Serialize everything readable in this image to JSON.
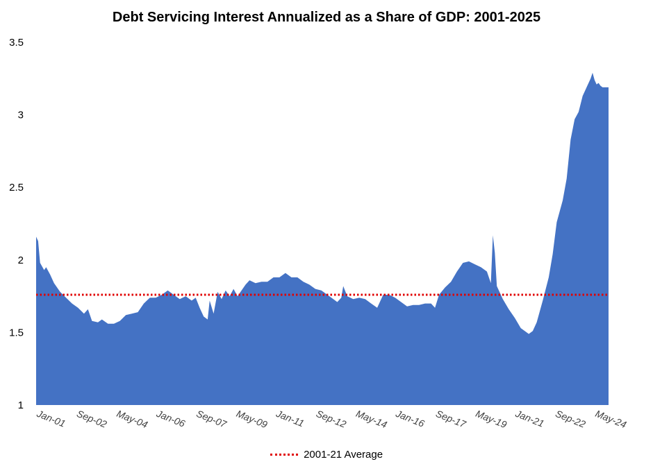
{
  "chart_data": {
    "type": "area",
    "title": "Debt Servicing Interest Annualized as a Share of GDP: 2001-2025",
    "xlabel": "",
    "ylabel": "",
    "ylim": [
      1,
      3.5
    ],
    "yticks": [
      "1",
      "1.5",
      "2",
      "2.5",
      "3",
      "3.5"
    ],
    "xtick_labels": [
      "Jan-01",
      "Sep-02",
      "May-04",
      "Jan-06",
      "Sep-07",
      "May-09",
      "Jan-11",
      "Sep-12",
      "May-14",
      "Jan-16",
      "Sep-17",
      "May-19",
      "Jan-21",
      "Sep-22",
      "May-24"
    ],
    "x_start": "Jan-01",
    "x_end": "Dec-24",
    "series": [
      {
        "name": "",
        "color": "#4472c4",
        "points": [
          [
            "Jan-01",
            2.16
          ],
          [
            "Feb-01",
            2.13
          ],
          [
            "Mar-01",
            1.98
          ],
          [
            "May-01",
            1.93
          ],
          [
            "Jun-01",
            1.95
          ],
          [
            "Aug-01",
            1.9
          ],
          [
            "Oct-01",
            1.84
          ],
          [
            "Jan-02",
            1.78
          ],
          [
            "Apr-02",
            1.74
          ],
          [
            "Jul-02",
            1.7
          ],
          [
            "Oct-02",
            1.67
          ],
          [
            "Jan-03",
            1.63
          ],
          [
            "Mar-03",
            1.66
          ],
          [
            "May-03",
            1.58
          ],
          [
            "Aug-03",
            1.57
          ],
          [
            "Oct-03",
            1.59
          ],
          [
            "Jan-04",
            1.56
          ],
          [
            "Apr-04",
            1.56
          ],
          [
            "Jul-04",
            1.58
          ],
          [
            "Oct-04",
            1.62
          ],
          [
            "Jan-05",
            1.63
          ],
          [
            "Apr-05",
            1.64
          ],
          [
            "Jul-05",
            1.7
          ],
          [
            "Oct-05",
            1.74
          ],
          [
            "Jan-06",
            1.74
          ],
          [
            "Apr-06",
            1.76
          ],
          [
            "Jul-06",
            1.79
          ],
          [
            "Oct-06",
            1.76
          ],
          [
            "Jan-07",
            1.73
          ],
          [
            "Apr-07",
            1.75
          ],
          [
            "Jul-07",
            1.72
          ],
          [
            "Sep-07",
            1.74
          ],
          [
            "Nov-07",
            1.67
          ],
          [
            "Jan-08",
            1.61
          ],
          [
            "Mar-08",
            1.59
          ],
          [
            "Apr-08",
            1.72
          ],
          [
            "Jun-08",
            1.63
          ],
          [
            "Aug-08",
            1.78
          ],
          [
            "Oct-08",
            1.73
          ],
          [
            "Dec-08",
            1.79
          ],
          [
            "Feb-09",
            1.75
          ],
          [
            "Apr-09",
            1.8
          ],
          [
            "Jun-09",
            1.75
          ],
          [
            "Aug-09",
            1.79
          ],
          [
            "Oct-09",
            1.83
          ],
          [
            "Dec-09",
            1.86
          ],
          [
            "Mar-10",
            1.84
          ],
          [
            "Jun-10",
            1.85
          ],
          [
            "Sep-10",
            1.85
          ],
          [
            "Dec-10",
            1.88
          ],
          [
            "Mar-11",
            1.88
          ],
          [
            "Jun-11",
            1.91
          ],
          [
            "Sep-11",
            1.88
          ],
          [
            "Dec-11",
            1.88
          ],
          [
            "Mar-12",
            1.85
          ],
          [
            "Jun-12",
            1.83
          ],
          [
            "Sep-12",
            1.8
          ],
          [
            "Dec-12",
            1.79
          ],
          [
            "Mar-13",
            1.76
          ],
          [
            "Jun-13",
            1.73
          ],
          [
            "Aug-13",
            1.71
          ],
          [
            "Oct-13",
            1.74
          ],
          [
            "Nov-13",
            1.82
          ],
          [
            "Jan-14",
            1.75
          ],
          [
            "Apr-14",
            1.73
          ],
          [
            "Jul-14",
            1.74
          ],
          [
            "Oct-14",
            1.73
          ],
          [
            "Jan-15",
            1.7
          ],
          [
            "Apr-15",
            1.67
          ],
          [
            "Jul-15",
            1.76
          ],
          [
            "Oct-15",
            1.76
          ],
          [
            "Jan-16",
            1.74
          ],
          [
            "Apr-16",
            1.71
          ],
          [
            "Jul-16",
            1.68
          ],
          [
            "Oct-16",
            1.69
          ],
          [
            "Jan-17",
            1.69
          ],
          [
            "Apr-17",
            1.7
          ],
          [
            "Jul-17",
            1.7
          ],
          [
            "Sep-17",
            1.67
          ],
          [
            "Nov-17",
            1.76
          ],
          [
            "Feb-18",
            1.81
          ],
          [
            "May-18",
            1.85
          ],
          [
            "Aug-18",
            1.92
          ],
          [
            "Nov-18",
            1.98
          ],
          [
            "Feb-19",
            1.99
          ],
          [
            "May-19",
            1.97
          ],
          [
            "Aug-19",
            1.95
          ],
          [
            "Nov-19",
            1.92
          ],
          [
            "Jan-20",
            1.84
          ],
          [
            "Feb-20",
            2.17
          ],
          [
            "Mar-20",
            2.05
          ],
          [
            "Apr-20",
            1.82
          ],
          [
            "Jul-20",
            1.73
          ],
          [
            "Oct-20",
            1.66
          ],
          [
            "Jan-21",
            1.6
          ],
          [
            "Apr-21",
            1.53
          ],
          [
            "Jun-21",
            1.51
          ],
          [
            "Aug-21",
            1.49
          ],
          [
            "Oct-21",
            1.51
          ],
          [
            "Dec-21",
            1.57
          ],
          [
            "Mar-22",
            1.72
          ],
          [
            "Jun-22",
            1.88
          ],
          [
            "Aug-22",
            2.04
          ],
          [
            "Oct-22",
            2.26
          ],
          [
            "Jan-23",
            2.41
          ],
          [
            "Mar-23",
            2.56
          ],
          [
            "May-23",
            2.83
          ],
          [
            "Jul-23",
            2.97
          ],
          [
            "Sep-23",
            3.02
          ],
          [
            "Nov-23",
            3.13
          ],
          [
            "Jan-24",
            3.19
          ],
          [
            "Mar-24",
            3.25
          ],
          [
            "Apr-24",
            3.29
          ],
          [
            "May-24",
            3.24
          ],
          [
            "Jun-24",
            3.21
          ],
          [
            "Jul-24",
            3.22
          ],
          [
            "Aug-24",
            3.2
          ],
          [
            "Sep-24",
            3.19
          ],
          [
            "Dec-24",
            3.19
          ]
        ]
      }
    ],
    "reference_line": {
      "name": "2001-21 Average",
      "value": 1.76,
      "color": "#e00000",
      "style": "dotted"
    },
    "legend": {
      "position": "bottom",
      "entries": [
        "2001-21 Average"
      ]
    },
    "grid": false
  }
}
